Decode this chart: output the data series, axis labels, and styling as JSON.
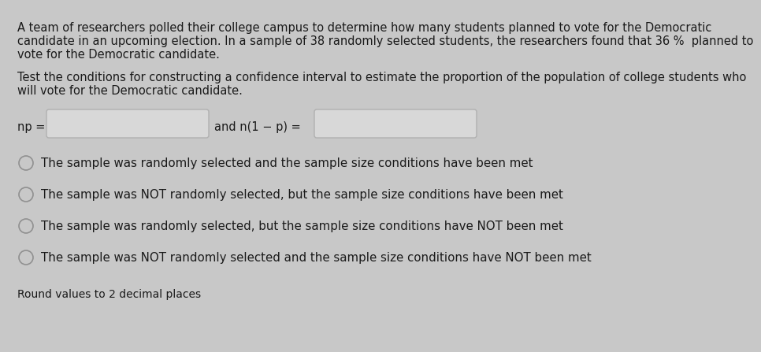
{
  "background_color": "#c8c8c8",
  "text_color": "#1a1a1a",
  "paragraph1_line1": "A team of researchers polled their college campus to determine how many students planned to vote for the Democratic",
  "paragraph1_line2": "candidate in an upcoming election. In a sample of 38 randomly selected students, the researchers found that 36 %  planned to",
  "paragraph1_line3": "vote for the Democratic candidate.",
  "paragraph2_line1": "Test the conditions for constructing a confidence interval to estimate the proportion of the population of college students who",
  "paragraph2_line2": "will vote for the Democratic candidate.",
  "np_label": "np = ",
  "n1p_label": "and n(1 − p) = ",
  "radio_options": [
    "The sample was randomly selected and the sample size conditions have been met",
    "The sample was NOT randomly selected, but the sample size conditions have been met",
    "The sample was randomly selected, but the sample size conditions have NOT been met",
    "The sample was NOT randomly selected and the sample size conditions have NOT been met"
  ],
  "bottom_text": "Round values to 2 decimal places",
  "box_fill_color": "#d8d8d8",
  "box_border_color": "#b0b0b0",
  "font_size_body": 10.5,
  "font_size_radio": 10.8
}
